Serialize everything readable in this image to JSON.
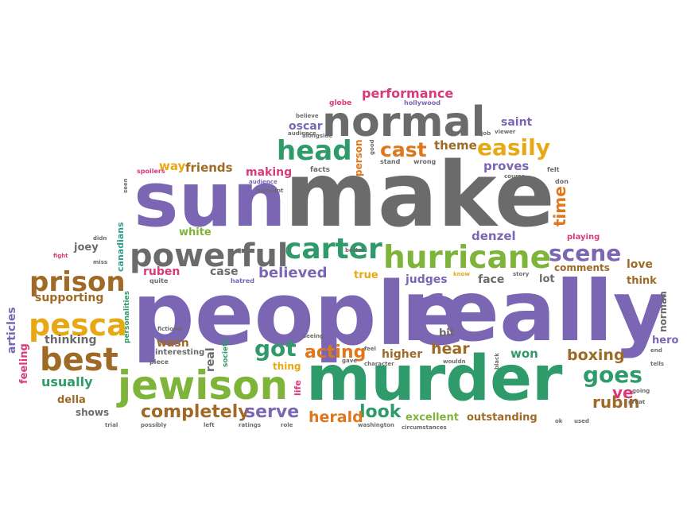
{
  "palette": {
    "purple": "#7b66b4",
    "gray": "#6b6b6b",
    "green": "#2f9a6a",
    "gold": "#e8a813",
    "orange": "#e0771c",
    "brown": "#9e6a26",
    "pink": "#d93a7a",
    "lime": "#7fb43b",
    "teal": "#2e9e8e"
  },
  "words": [
    {
      "t": "make",
      "c": "gray"
    },
    {
      "t": "sun",
      "c": "purple"
    },
    {
      "t": "people",
      "c": "purple"
    },
    {
      "t": "really",
      "c": "purple"
    },
    {
      "t": "murder",
      "c": "green"
    },
    {
      "t": "normal",
      "c": "gray"
    },
    {
      "t": "hurricane",
      "c": "lime"
    },
    {
      "t": "jewison",
      "c": "lime"
    },
    {
      "t": "powerful",
      "c": "gray"
    },
    {
      "t": "carter",
      "c": "green"
    },
    {
      "t": "prison",
      "c": "brown"
    },
    {
      "t": "pesca",
      "c": "gold"
    },
    {
      "t": "best",
      "c": "brown"
    },
    {
      "t": "head",
      "c": "green"
    },
    {
      "t": "scene",
      "c": "purple"
    },
    {
      "t": "easily",
      "c": "gold"
    },
    {
      "t": "cast",
      "c": "orange"
    },
    {
      "t": "performance",
      "c": "pink"
    },
    {
      "t": "goes",
      "c": "green"
    },
    {
      "t": "completely",
      "c": "brown"
    },
    {
      "t": "got",
      "c": "green"
    },
    {
      "t": "rubin",
      "c": "brown"
    },
    {
      "t": "acting",
      "c": "orange"
    },
    {
      "t": "look",
      "c": "green"
    },
    {
      "t": "serve",
      "c": "purple"
    },
    {
      "t": "herald",
      "c": "orange"
    },
    {
      "t": "boxing",
      "c": "brown"
    },
    {
      "t": "hear",
      "c": "brown"
    },
    {
      "t": "believed",
      "c": "purple"
    },
    {
      "t": "theme",
      "c": "brown"
    },
    {
      "t": "proves",
      "c": "purple"
    },
    {
      "t": "time",
      "c": "orange"
    },
    {
      "t": "denzel",
      "c": "purple"
    },
    {
      "t": "saint",
      "c": "purple"
    },
    {
      "t": "friends",
      "c": "brown"
    },
    {
      "t": "way",
      "c": "gold"
    },
    {
      "t": "making",
      "c": "pink"
    },
    {
      "t": "oscar",
      "c": "purple"
    },
    {
      "t": "usually",
      "c": "green"
    },
    {
      "t": "supporting",
      "c": "brown"
    },
    {
      "t": "thinking",
      "c": "gray"
    },
    {
      "t": "joey",
      "c": "gray"
    },
    {
      "t": "white",
      "c": "lime"
    },
    {
      "t": "ruben",
      "c": "pink"
    },
    {
      "t": "case",
      "c": "gray"
    },
    {
      "t": "true",
      "c": "gold"
    },
    {
      "t": "judges",
      "c": "purple"
    },
    {
      "t": "face",
      "c": "gray"
    },
    {
      "t": "lot",
      "c": "gray"
    },
    {
      "t": "love",
      "c": "brown"
    },
    {
      "t": "think",
      "c": "brown"
    },
    {
      "t": "comments",
      "c": "brown"
    },
    {
      "t": "playing",
      "c": "pink"
    },
    {
      "t": "won",
      "c": "green"
    },
    {
      "t": "higher",
      "c": "brown"
    },
    {
      "t": "bit",
      "c": "gray"
    },
    {
      "t": "ve",
      "c": "pink"
    },
    {
      "t": "excellent",
      "c": "lime"
    },
    {
      "t": "outstanding",
      "c": "brown"
    },
    {
      "t": "hero",
      "c": "purple"
    },
    {
      "t": "norman",
      "c": "gray"
    },
    {
      "t": "thing",
      "c": "gold"
    },
    {
      "t": "wasn",
      "c": "brown"
    },
    {
      "t": "real",
      "c": "gray"
    },
    {
      "t": "della",
      "c": "brown"
    },
    {
      "t": "shows",
      "c": "gray"
    },
    {
      "t": "articles",
      "c": "purple"
    },
    {
      "t": "feeling",
      "c": "pink"
    },
    {
      "t": "canadians",
      "c": "teal"
    },
    {
      "t": "personalities",
      "c": "green"
    },
    {
      "t": "society",
      "c": "green"
    },
    {
      "t": "life",
      "c": "pink"
    },
    {
      "t": "person",
      "c": "orange"
    },
    {
      "t": "interesting",
      "c": "gray"
    },
    {
      "t": "fictional",
      "c": "gray"
    },
    {
      "t": "piece",
      "c": "gray"
    },
    {
      "t": "quite",
      "c": "gray"
    },
    {
      "t": "hatred",
      "c": "purple"
    },
    {
      "t": "globe",
      "c": "pink"
    },
    {
      "t": "hollywood",
      "c": "purple"
    },
    {
      "t": "believe",
      "c": "gray"
    },
    {
      "t": "audience",
      "c": "gray"
    },
    {
      "t": "alongside",
      "c": "gray"
    },
    {
      "t": "job",
      "c": "gray"
    },
    {
      "t": "viewer",
      "c": "gray"
    },
    {
      "t": "felt",
      "c": "gray"
    },
    {
      "t": "don",
      "c": "gray"
    },
    {
      "t": "facts",
      "c": "gray"
    },
    {
      "t": "stand",
      "c": "gray"
    },
    {
      "t": "wrong",
      "c": "gray"
    },
    {
      "t": "course",
      "c": "gray"
    },
    {
      "t": "spoilers",
      "c": "pink"
    },
    {
      "t": "innocent",
      "c": "gray"
    },
    {
      "t": "audience",
      "c": "purple"
    },
    {
      "t": "seen",
      "c": "gray"
    },
    {
      "t": "didn",
      "c": "gray"
    },
    {
      "t": "miss",
      "c": "gray"
    },
    {
      "t": "fight",
      "c": "pink"
    },
    {
      "t": "better",
      "c": "gray"
    },
    {
      "t": "good",
      "c": "gray"
    },
    {
      "t": "know",
      "c": "gold"
    },
    {
      "t": "story",
      "c": "gray"
    },
    {
      "t": "seeing",
      "c": "gray"
    },
    {
      "t": "feel",
      "c": "gray"
    },
    {
      "t": "gave",
      "c": "gray"
    },
    {
      "t": "character",
      "c": "gray"
    },
    {
      "t": "wouldn",
      "c": "gray"
    },
    {
      "t": "black",
      "c": "gray"
    },
    {
      "t": "tells",
      "c": "gray"
    },
    {
      "t": "end",
      "c": "gray"
    },
    {
      "t": "going",
      "c": "gray"
    },
    {
      "t": "great",
      "c": "gray"
    },
    {
      "t": "used",
      "c": "gray"
    },
    {
      "t": "ok",
      "c": "gray"
    },
    {
      "t": "washington",
      "c": "gray"
    },
    {
      "t": "circumstances",
      "c": "gray"
    },
    {
      "t": "role",
      "c": "gray"
    },
    {
      "t": "ratings",
      "c": "gray"
    },
    {
      "t": "left",
      "c": "gray"
    },
    {
      "t": "possibly",
      "c": "gray"
    },
    {
      "t": "trial",
      "c": "gray"
    }
  ]
}
